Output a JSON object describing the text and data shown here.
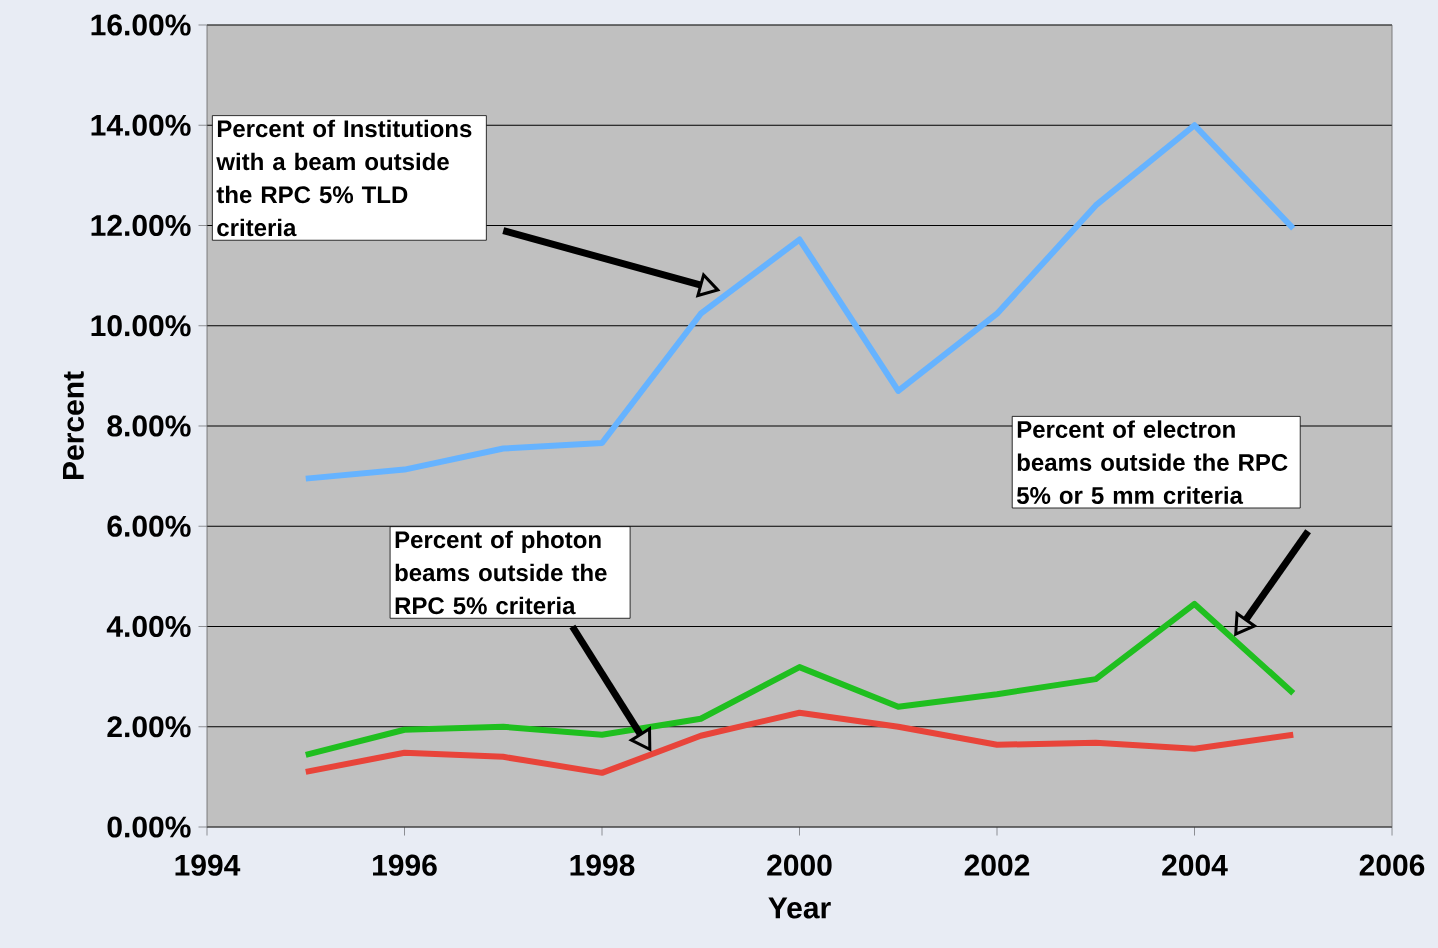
{
  "chart_data": {
    "type": "line",
    "xlabel": "Year",
    "ylabel": "Percent",
    "x": [
      1995,
      1996,
      1997,
      1998,
      1999,
      2000,
      2001,
      2002,
      2003,
      2004,
      2005
    ],
    "series": [
      {
        "color": "#66b3ff",
        "values": [
          6.95,
          7.13,
          7.55,
          7.66,
          10.24,
          11.72,
          8.7,
          10.24,
          12.4,
          14.0,
          11.94
        ]
      },
      {
        "color": "#1fbf1f",
        "values": [
          1.44,
          1.94,
          2.0,
          1.84,
          2.16,
          3.19,
          2.4,
          2.65,
          2.95,
          4.45,
          2.67
        ]
      },
      {
        "color": "#e8443a",
        "values": [
          1.1,
          1.48,
          1.4,
          1.08,
          1.82,
          2.28,
          2.0,
          1.64,
          1.68,
          1.56,
          1.84
        ]
      }
    ],
    "xlim": [
      1994,
      2006
    ],
    "xticks": [
      1994,
      1996,
      1998,
      2000,
      2002,
      2004,
      2006
    ],
    "ylim": [
      0,
      16
    ],
    "yticks": [
      {
        "value": 0,
        "label": "0.00%"
      },
      {
        "value": 2,
        "label": "2.00%"
      },
      {
        "value": 4,
        "label": "4.00%"
      },
      {
        "value": 6,
        "label": "6.00%"
      },
      {
        "value": 8,
        "label": "8.00%"
      },
      {
        "value": 10,
        "label": "10.00%"
      },
      {
        "value": 12,
        "label": "12.00%"
      },
      {
        "value": 14,
        "label": "14.00%"
      },
      {
        "value": 16,
        "label": "16.00%"
      }
    ],
    "grid": "y",
    "marker": "none",
    "line_style": "solid",
    "annotations": [
      "Percent of Institutions with a beam outside the RPC 5% TLD criteria",
      "Percent of photon beams outside the RPC 5% criteria",
      "Percent of electron beams outside the RPC 5% or 5 mm criteria"
    ]
  }
}
